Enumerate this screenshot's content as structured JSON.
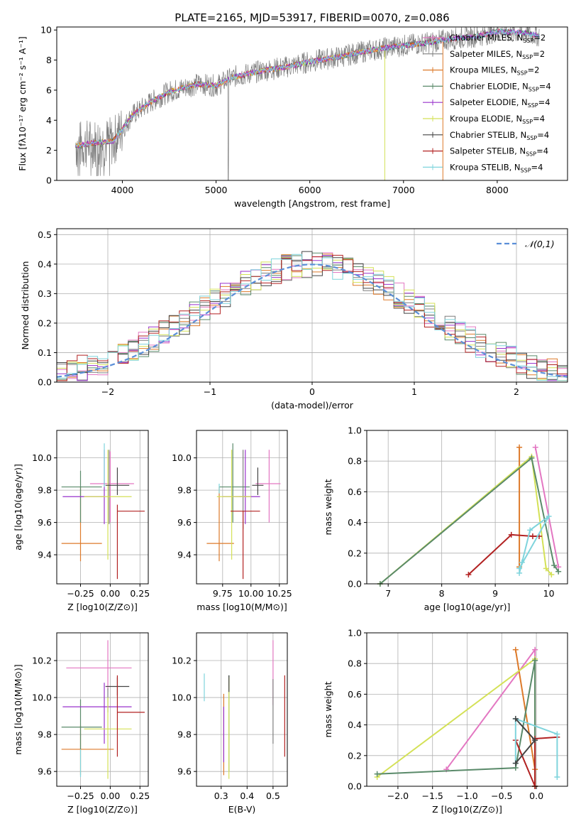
{
  "figure_title": "PLATE=2165, MJD=53917, FIBERID=0070, z=0.086",
  "colors": {
    "chabrier_miles": "#e377c2",
    "salpeter_miles": "#7f7f7f",
    "kroupa_miles": "#dd7a2a",
    "chabrier_elodie": "#5a8a6a",
    "salpeter_elodie": "#9932cc",
    "kroupa_elodie": "#d4e157",
    "chabrier_stelib": "#444444",
    "salpeter_stelib": "#b22222",
    "kroupa_stelib": "#7fd4dc",
    "blue": "#5b8fd8",
    "grid": "#b0b0b0"
  },
  "chart_data": [
    {
      "id": "spectrum",
      "type": "line",
      "xlabel": "wavelength [Angstrom, rest frame]",
      "ylabel": "Flux [fλ10⁻¹⁷ erg cm⁻² s⁻¹ A⁻¹]",
      "xlim": [
        3300,
        8750
      ],
      "ylim": [
        0,
        10.2
      ],
      "xticks": [
        "4000",
        "5000",
        "6000",
        "7000",
        "8000"
      ],
      "yticks": [
        "0",
        "2",
        "4",
        "6",
        "8",
        "10"
      ],
      "legend_position": "right",
      "legend": [
        "Chabrier MILES, N_SSP=2",
        "Salpeter MILES, N_SSP=2",
        "Kroupa MILES, N_SSP=2",
        "Chabrier ELODIE, N_SSP=4",
        "Salpeter ELODIE, N_SSP=4",
        "Kroupa ELODIE, N_SSP=4",
        "Chabrier STELIB, N_SSP=4",
        "Salpeter STELIB, N_SSP=4",
        "Kroupa STELIB, N_SSP=4"
      ],
      "continuum": {
        "x": [
          3500,
          3700,
          3900,
          4000,
          4100,
          4300,
          4500,
          4800,
          5000,
          5200,
          5500,
          5800,
          6000,
          6300,
          6600,
          6900,
          7200,
          7500,
          7800,
          8000,
          8300,
          8450
        ],
        "y": [
          2.3,
          2.5,
          2.6,
          3.4,
          4.3,
          5.2,
          5.9,
          6.4,
          6.3,
          6.9,
          7.3,
          7.6,
          7.9,
          8.2,
          8.6,
          8.9,
          9.1,
          9.4,
          9.6,
          9.9,
          9.8,
          9.6
        ]
      },
      "drops": [
        {
          "series": "kroupa_elodie",
          "x": 6800
        },
        {
          "series": "kroupa_miles",
          "x": 7420
        }
      ]
    },
    {
      "id": "residuals",
      "type": "histogram",
      "xlabel": "(data-model)/error",
      "ylabel": "Normed distribution",
      "xlim": [
        -2.5,
        2.5
      ],
      "ylim": [
        0,
        0.52
      ],
      "xticks": [
        "−2",
        "−1",
        "0",
        "1",
        "2"
      ],
      "yticks": [
        "0.0",
        "0.1",
        "0.2",
        "0.3",
        "0.4",
        "0.5"
      ],
      "bin_width": 0.1,
      "legend": "𝒩(0,1)",
      "legend_position": "top-right",
      "reference_line": "normal pdf, mean 0, std 1"
    },
    {
      "id": "age_vs_z",
      "type": "errorbar",
      "xlabel": "Z [log10(Z/Z⊙)]",
      "ylabel": "age  [log10(age/yr)]",
      "xlim": [
        -0.45,
        0.32
      ],
      "ylim": [
        9.22,
        10.17
      ],
      "xticks": [
        "−0.25",
        "0.00",
        "0.25"
      ],
      "yticks": [
        "9.4",
        "9.6",
        "9.8",
        "10.0"
      ],
      "points": [
        {
          "s": "chabrier_miles",
          "x": 0.0,
          "y": 9.84,
          "xe": [
            0.17,
            0.2
          ],
          "ye": [
            0.24,
            0.2
          ]
        },
        {
          "s": "salpeter_miles",
          "x": -0.01,
          "y": 9.76,
          "xe": [
            0.01,
            0.01
          ],
          "ye": [
            0.17,
            0.29
          ]
        },
        {
          "s": "kroupa_miles",
          "x": -0.25,
          "y": 9.47,
          "xe": [
            0.16,
            0.18
          ],
          "ye": [
            0.11,
            0.35
          ]
        },
        {
          "s": "chabrier_elodie",
          "x": -0.25,
          "y": 9.82,
          "xe": [
            0.16,
            0.18
          ],
          "ye": [
            0.22,
            0.1
          ]
        },
        {
          "s": "salpeter_elodie",
          "x": -0.05,
          "y": 9.76,
          "xe": [
            0.35,
            0.0
          ],
          "ye": [
            0.17,
            0.29
          ]
        },
        {
          "s": "kroupa_elodie",
          "x": -0.02,
          "y": 9.76,
          "xe": [
            0.2,
            0.2
          ],
          "ye": [
            0.39,
            0.29
          ]
        },
        {
          "s": "chabrier_stelib",
          "x": 0.06,
          "y": 9.83,
          "xe": [
            0.1,
            0.1
          ],
          "ye": [
            0.06,
            0.11
          ]
        },
        {
          "s": "salpeter_stelib",
          "x": 0.06,
          "y": 9.67,
          "xe": [
            0.0,
            0.23
          ],
          "ye": [
            0.42,
            0.04
          ]
        },
        {
          "s": "kroupa_stelib",
          "x": -0.05,
          "y": 9.84,
          "xe": [
            0.0,
            0.0
          ],
          "ye": [
            0.02,
            0.25
          ]
        }
      ]
    },
    {
      "id": "age_vs_mass",
      "type": "errorbar",
      "xlabel": "mass [log10(M/M⊙)]",
      "ylabel": "",
      "xlim": [
        9.52,
        10.32
      ],
      "ylim": [
        9.22,
        10.17
      ],
      "xticks": [
        "9.75",
        "10.00",
        "10.25"
      ],
      "yticks": [
        "9.4",
        "9.6",
        "9.8",
        "10.0"
      ],
      "points": [
        {
          "s": "chabrier_miles",
          "x": 10.16,
          "y": 9.84,
          "xe": [
            0.12,
            0.1
          ],
          "ye": [
            0.24,
            0.21
          ]
        },
        {
          "s": "salpeter_miles",
          "x": 9.93,
          "y": 9.76,
          "xe": [
            0.03,
            0.03
          ],
          "ye": [
            0.2,
            0.29
          ]
        },
        {
          "s": "kroupa_miles",
          "x": 9.72,
          "y": 9.47,
          "xe": [
            0.11,
            0.13
          ],
          "ye": [
            0.11,
            0.35
          ]
        },
        {
          "s": "chabrier_elodie",
          "x": 9.84,
          "y": 9.82,
          "xe": [
            0.12,
            0.15
          ],
          "ye": [
            0.22,
            0.27
          ]
        },
        {
          "s": "salpeter_elodie",
          "x": 9.95,
          "y": 9.76,
          "xe": [
            0.2,
            0.13
          ],
          "ye": [
            0.17,
            0.29
          ]
        },
        {
          "s": "kroupa_elodie",
          "x": 9.83,
          "y": 9.76,
          "xe": [
            0.13,
            0.17
          ],
          "ye": [
            0.39,
            0.29
          ]
        },
        {
          "s": "chabrier_stelib",
          "x": 10.06,
          "y": 9.83,
          "xe": [
            0.05,
            0.05
          ],
          "ye": [
            0.06,
            0.11
          ]
        },
        {
          "s": "salpeter_stelib",
          "x": 9.93,
          "y": 9.67,
          "xe": [
            0.11,
            0.15
          ],
          "ye": [
            0.42,
            0.0
          ]
        },
        {
          "s": "kroupa_stelib",
          "x": 9.72,
          "y": 9.84,
          "xe": [
            0.0,
            0.0
          ],
          "ye": [
            0.06,
            0.0
          ]
        }
      ]
    },
    {
      "id": "weight_vs_age",
      "type": "line",
      "xlabel": "age  [log10(age/yr)]",
      "ylabel": "mass weight",
      "xlim": [
        6.6,
        10.35
      ],
      "ylim": [
        0.0,
        1.0
      ],
      "xticks": [
        "7",
        "8",
        "9",
        "10"
      ],
      "yticks": [
        "0.0",
        "0.2",
        "0.4",
        "0.6",
        "0.8",
        "1.0"
      ],
      "series": [
        {
          "s": "chabrier_miles",
          "x": [
            9.75,
            10.18
          ],
          "y": [
            0.89,
            0.11
          ]
        },
        {
          "s": "kroupa_miles",
          "x": [
            9.45,
            9.45
          ],
          "y": [
            0.89,
            0.11
          ]
        },
        {
          "s": "kroupa_elodie",
          "x": [
            6.85,
            9.68,
            9.95,
            10.05
          ],
          "y": [
            0.0,
            0.83,
            0.1,
            0.06
          ]
        },
        {
          "s": "chabrier_elodie",
          "x": [
            6.85,
            9.68,
            10.1,
            10.18
          ],
          "y": [
            0.0,
            0.82,
            0.12,
            0.08
          ]
        },
        {
          "s": "salpeter_stelib",
          "x": [
            8.5,
            9.3,
            9.7,
            9.82
          ],
          "y": [
            0.06,
            0.32,
            0.31,
            0.31
          ]
        },
        {
          "s": "kroupa_stelib",
          "x": [
            9.45,
            9.5,
            9.65,
            10.0,
            9.45
          ],
          "y": [
            0.07,
            0.14,
            0.35,
            0.44,
            0.1
          ]
        }
      ]
    },
    {
      "id": "mass_vs_z",
      "type": "errorbar",
      "xlabel": "Z [log10(Z/Z⊙)]",
      "ylabel": "mass [log10(M/M⊙)]",
      "xlim": [
        -0.45,
        0.32
      ],
      "ylim": [
        9.52,
        10.35
      ],
      "xticks": [
        "−0.25",
        "0.00",
        "0.25"
      ],
      "yticks": [
        "9.6",
        "9.8",
        "10.0",
        "10.2"
      ],
      "points": [
        {
          "s": "chabrier_miles",
          "x": -0.02,
          "y": 10.16,
          "xe": [
            0.35,
            0.2
          ],
          "ye": [
            0.12,
            0.15
          ]
        },
        {
          "s": "salpeter_miles",
          "x": -0.02,
          "y": 9.95,
          "xe": [
            0.0,
            0.0
          ],
          "ye": [
            0.03,
            0.1
          ]
        },
        {
          "s": "kroupa_miles",
          "x": -0.25,
          "y": 9.72,
          "xe": [
            0.16,
            0.28
          ],
          "ye": [
            0.14,
            0.13
          ]
        },
        {
          "s": "chabrier_elodie",
          "x": -0.25,
          "y": 9.84,
          "xe": [
            0.16,
            0.18
          ],
          "ye": [
            0.12,
            0.15
          ]
        },
        {
          "s": "salpeter_elodie",
          "x": -0.05,
          "y": 9.95,
          "xe": [
            0.35,
            0.23
          ],
          "ye": [
            0.2,
            0.13
          ]
        },
        {
          "s": "kroupa_elodie",
          "x": -0.02,
          "y": 9.83,
          "xe": [
            0.2,
            0.2
          ],
          "ye": [
            0.27,
            0.17
          ]
        },
        {
          "s": "chabrier_stelib",
          "x": 0.06,
          "y": 10.06,
          "xe": [
            0.1,
            0.1
          ],
          "ye": [
            0.05,
            0.05
          ]
        },
        {
          "s": "salpeter_stelib",
          "x": 0.06,
          "y": 9.92,
          "xe": [
            0.0,
            0.23
          ],
          "ye": [
            0.24,
            0.2
          ]
        },
        {
          "s": "kroupa_stelib",
          "x": -0.25,
          "y": 9.72,
          "xe": [
            0.0,
            0.0
          ],
          "ye": [
            0.15,
            0.0
          ]
        }
      ]
    },
    {
      "id": "mass_vs_ebv",
      "type": "errorbar",
      "xlabel": "E(B-V)",
      "ylabel": "",
      "xlim": [
        0.205,
        0.555
      ],
      "ylim": [
        9.52,
        10.35
      ],
      "xticks": [
        "0.3",
        "0.4",
        "0.5"
      ],
      "yticks": [
        "9.6",
        "9.8",
        "10.0",
        "10.2"
      ],
      "points": [
        {
          "s": "chabrier_miles",
          "x": 0.5,
          "y": 10.16,
          "xe": [
            0.0,
            0.0
          ],
          "ye": [
            0.2,
            0.15
          ]
        },
        {
          "s": "salpeter_miles",
          "x": 0.5,
          "y": 9.95,
          "xe": [
            0.0,
            0.0
          ],
          "ye": [
            0.2,
            0.15
          ]
        },
        {
          "s": "kroupa_miles",
          "x": 0.31,
          "y": 9.72,
          "xe": [
            0.0,
            0.0
          ],
          "ye": [
            0.14,
            0.3
          ]
        },
        {
          "s": "chabrier_elodie",
          "x": 0.33,
          "y": 9.84,
          "xe": [
            0.0,
            0.0
          ],
          "ye": [
            0.24,
            0.28
          ]
        },
        {
          "s": "salpeter_elodie",
          "x": 0.31,
          "y": 9.95,
          "xe": [
            0.0,
            0.0
          ],
          "ye": [
            0.3,
            0.0
          ]
        },
        {
          "s": "kroupa_elodie",
          "x": 0.33,
          "y": 9.83,
          "xe": [
            0.0,
            0.0
          ],
          "ye": [
            0.27,
            0.28
          ]
        },
        {
          "s": "chabrier_stelib",
          "x": 0.33,
          "y": 10.06,
          "xe": [
            0.0,
            0.0
          ],
          "ye": [
            0.03,
            0.06
          ]
        },
        {
          "s": "salpeter_stelib",
          "x": 0.545,
          "y": 9.92,
          "xe": [
            0.0,
            0.0
          ],
          "ye": [
            0.24,
            0.2
          ]
        },
        {
          "s": "kroupa_stelib",
          "x": 0.235,
          "y": 10.06,
          "xe": [
            0.0,
            0.0
          ],
          "ye": [
            0.08,
            0.07
          ]
        }
      ]
    },
    {
      "id": "weight_vs_z",
      "type": "line",
      "xlabel": "Z [log10(Z/Z⊙)]",
      "ylabel": "mass weight",
      "xlim": [
        -2.45,
        0.45
      ],
      "ylim": [
        0.0,
        1.0
      ],
      "xticks": [
        "−2.0",
        "−1.5",
        "−1.0",
        "−0.5",
        "0.0"
      ],
      "yticks": [
        "0.0",
        "0.2",
        "0.4",
        "0.6",
        "0.8",
        "1.0"
      ],
      "series": [
        {
          "s": "chabrier_miles",
          "x": [
            -1.3,
            -0.02,
            -0.02
          ],
          "y": [
            0.11,
            0.89,
            0.0
          ]
        },
        {
          "s": "kroupa_miles",
          "x": [
            -0.3,
            -0.02,
            -0.02
          ],
          "y": [
            0.89,
            0.11,
            0.0
          ]
        },
        {
          "s": "kroupa_elodie",
          "x": [
            -2.3,
            -0.02,
            -0.02
          ],
          "y": [
            0.06,
            0.83,
            0.0
          ]
        },
        {
          "s": "chabrier_elodie",
          "x": [
            -2.3,
            -0.3,
            -0.02,
            -0.02
          ],
          "y": [
            0.08,
            0.12,
            0.82,
            0.0
          ]
        },
        {
          "s": "salpeter_stelib",
          "x": [
            -0.3,
            -0.02,
            -0.02,
            0.3
          ],
          "y": [
            0.3,
            0.0,
            0.31,
            0.32
          ]
        },
        {
          "s": "kroupa_stelib",
          "x": [
            -0.3,
            -0.3,
            0.3,
            0.3
          ],
          "y": [
            0.15,
            0.44,
            0.34,
            0.06
          ]
        },
        {
          "s": "chabrier_stelib",
          "x": [
            -0.3,
            -0.02,
            -0.3
          ],
          "y": [
            0.44,
            0.3,
            0.15
          ]
        }
      ]
    }
  ]
}
